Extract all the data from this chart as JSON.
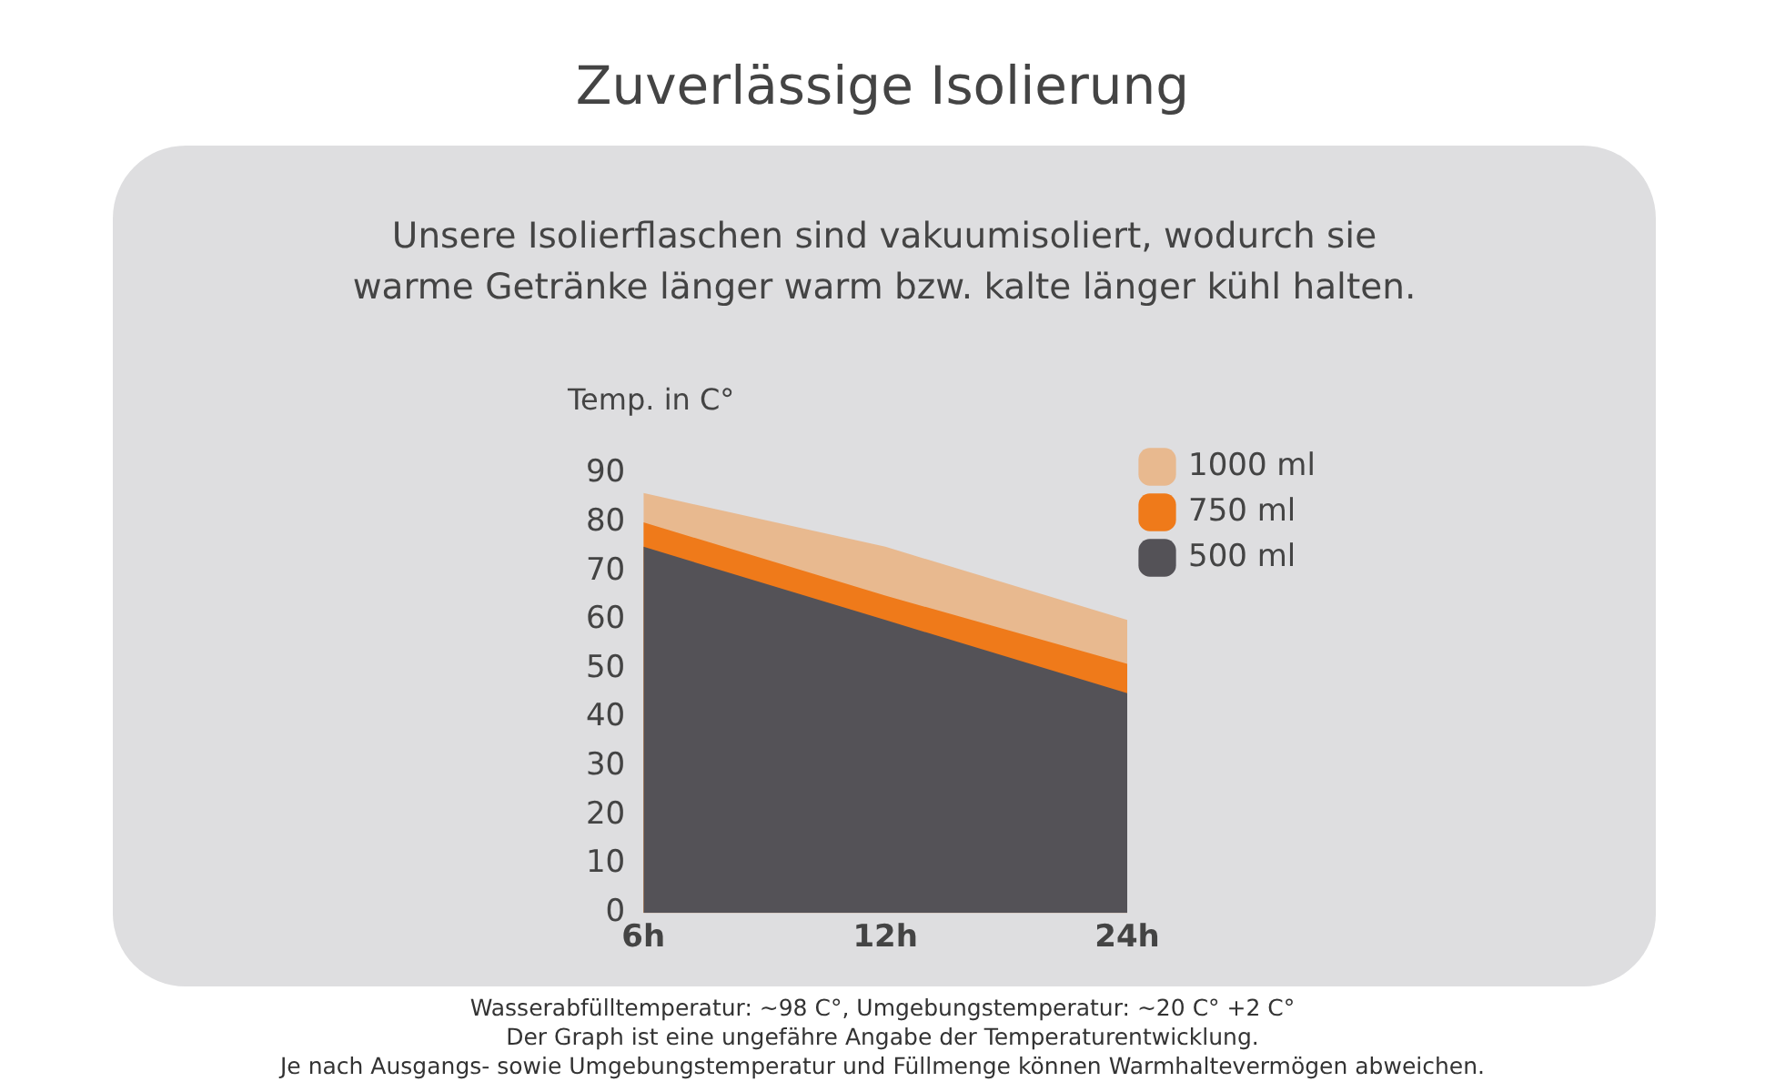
{
  "chart_data": {
    "type": "area",
    "title": "Zuverlässige Isolierung",
    "subtitle": "Unsere Isolierflaschen sind vakuumisoliert, wodurch sie warme Getränke länger warm bzw. kalte länger kühl halten.",
    "ylabel": "Temp. in C°",
    "categories": [
      "6h",
      "12h",
      "24h"
    ],
    "series": [
      {
        "name": "1000 ml",
        "color": "#e8b98f",
        "values": [
          86,
          75,
          60
        ]
      },
      {
        "name": "750 ml",
        "color": "#ef7a1a",
        "values": [
          80,
          65,
          51
        ]
      },
      {
        "name": "500 ml",
        "color": "#545257",
        "values": [
          75,
          60,
          45
        ]
      }
    ],
    "ylim": [
      0,
      90
    ],
    "yticks": [
      0,
      10,
      20,
      30,
      40,
      50,
      60,
      70,
      80,
      90
    ],
    "grid": false,
    "legend": "top right",
    "annotations": [
      "Wasserabfülltemperatur: ~98 C°, Umgebungstemperatur: ~20 C° +2 C°",
      "Der Graph ist eine ungefähre Angabe der Temperaturentwicklung.",
      "Je nach Ausgangs- sowie Umgebungstemperatur und Füllmenge können Warmhaltevermögen abweichen."
    ]
  }
}
